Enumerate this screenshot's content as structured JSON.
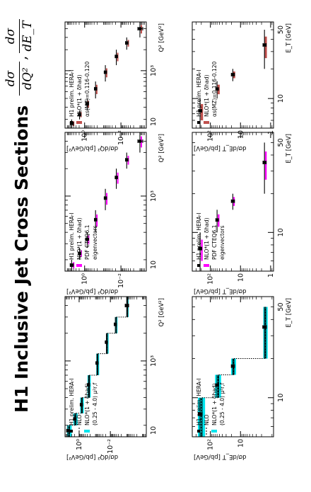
{
  "page": {
    "title": "H1 Inclusive Jet Cross Sections",
    "title_fraction_q2": {
      "numerator": "dσ",
      "denominator": "dQ²"
    },
    "title_separator": ",",
    "title_fraction_et": {
      "numerator": "dσ",
      "denominator": "dE_T"
    }
  },
  "chart_data": [
    {
      "type": "scatter",
      "panel": "q2-total-uncertainty",
      "xlabel": "Q² [GeV²]",
      "ylabel": "dσ/dQ² [pb/GeV²]",
      "xscale": "log",
      "yscale": "log",
      "xlim": [
        150,
        5000
      ],
      "ylim": [
        5e-05,
        8
      ],
      "x_ticks": [
        {
          "v": 1000,
          "label": "10³"
        }
      ],
      "x_tick_labels": [
        "10"
      ],
      "y_ticks": [
        {
          "v": 1,
          "label": "10⁰"
        },
        {
          "v": 0.01,
          "label": "10⁻²"
        }
      ],
      "x_minor_ticks": [
        200,
        300,
        400,
        500,
        600,
        700,
        800,
        900,
        2000,
        3000,
        4000,
        5000
      ],
      "bin_edges": [
        150,
        200,
        270,
        400,
        700,
        1200,
        2000,
        3000,
        5000
      ],
      "legend": [
        "H1 prelim. HERA-I",
        "NLO",
        "NLO*(1 + δhad)",
        "(0.25 - 4.0) μ²r,f"
      ],
      "series": [
        {
          "name": "H1 prelim. HERA-I",
          "x": [
            175,
            235,
            335,
            550,
            950,
            1600,
            2500,
            4000
          ],
          "y": [
            5.2,
            1.9,
            0.72,
            0.25,
            0.072,
            0.018,
            0.0048,
            0.0009
          ],
          "xerr": [
            25,
            35,
            65,
            150,
            250,
            400,
            500,
            1000
          ],
          "yerr_rel": [
            0.22,
            0.18,
            0.15,
            0.14,
            0.13,
            0.14,
            0.16,
            0.25
          ]
        },
        {
          "name": "NLO",
          "y": [
            4.4,
            1.7,
            0.66,
            0.23,
            0.065,
            0.016,
            0.0042,
            0.0008
          ]
        },
        {
          "name": "NLO*(1 + δhad)",
          "y": [
            4.1,
            1.6,
            0.63,
            0.22,
            0.063,
            0.0155,
            0.0041,
            0.00078
          ]
        },
        {
          "name": "(0.25 - 4.0) μ²r,f",
          "band_lo": [
            3.0,
            1.25,
            0.5,
            0.18,
            0.052,
            0.013,
            0.0035,
            0.00068
          ],
          "band_hi": [
            6.0,
            2.3,
            0.85,
            0.29,
            0.08,
            0.019,
            0.005,
            0.00092
          ]
        }
      ]
    },
    {
      "type": "scatter",
      "panel": "q2-pdf-uncertainty",
      "xlabel": "Q² [GeV²]",
      "ylabel": "dσ/dQ² [pb/GeV²]",
      "xscale": "log",
      "yscale": "log",
      "xlim": [
        150,
        5000
      ],
      "ylim": [
        0.0004,
        12
      ],
      "x_ticks": [
        {
          "v": 1000,
          "label": "10³"
        }
      ],
      "x_tick_labels": [
        "10"
      ],
      "y_ticks": [
        {
          "v": 1,
          "label": "10⁰"
        },
        {
          "v": 0.01,
          "label": "10⁻²"
        }
      ],
      "x_minor_ticks": [
        200,
        300,
        400,
        500,
        600,
        700,
        800,
        900,
        2000,
        3000,
        4000,
        5000
      ],
      "legend": [
        "H1 prelim. HERA-I",
        "NLO*(1 + δhad)",
        "PDF CTEQ6.1",
        "eigenvectors"
      ],
      "series": [
        {
          "name": "H1 prelim. HERA-I",
          "x": [
            175,
            235,
            335,
            550,
            950,
            1600,
            2500,
            4000
          ],
          "y": [
            5.2,
            1.9,
            0.72,
            0.25,
            0.072,
            0.018,
            0.0048,
            0.0009
          ],
          "xerr": [
            25,
            35,
            65,
            150,
            250,
            400,
            500,
            1000
          ],
          "yerr_rel": [
            0.2,
            0.16,
            0.14,
            0.13,
            0.13,
            0.14,
            0.16,
            0.3
          ]
        },
        {
          "name": "NLO*(1 + δhad) PDF band",
          "band_lo": [
            3.8,
            1.5,
            0.6,
            0.21,
            0.06,
            0.0148,
            0.0039,
            0.00074
          ],
          "band_hi": [
            4.4,
            1.7,
            0.66,
            0.23,
            0.066,
            0.0163,
            0.0043,
            0.00082
          ]
        }
      ]
    },
    {
      "type": "scatter",
      "panel": "q2-alphas",
      "xlabel": "Q² [GeV²]",
      "ylabel": "dσ/dQ² [pb/GeV²]",
      "xscale": "log",
      "yscale": "log",
      "xlim": [
        150,
        5000
      ],
      "ylim": [
        0.0004,
        12
      ],
      "x_ticks": [
        {
          "v": 1000,
          "label": "10³"
        }
      ],
      "x_tick_labels": [
        "10"
      ],
      "y_ticks": [
        {
          "v": 1,
          "label": "10⁰"
        },
        {
          "v": 0.01,
          "label": "10⁻²"
        }
      ],
      "x_minor_ticks": [
        200,
        300,
        400,
        500,
        600,
        700,
        800,
        900,
        2000,
        3000,
        4000,
        5000
      ],
      "legend": [
        "H1 prelim. HERA-I",
        "NLO*(1 + δhad)",
        "αs(MZ)=0.116-0.120"
      ],
      "series": [
        {
          "name": "H1 prelim. HERA-I",
          "x": [
            175,
            235,
            335,
            550,
            950,
            1600,
            2500,
            4000
          ],
          "y": [
            5.2,
            1.9,
            0.72,
            0.25,
            0.072,
            0.018,
            0.0048,
            0.0009
          ],
          "xerr": [
            25,
            35,
            65,
            150,
            250,
            400,
            500,
            1000
          ],
          "yerr_rel": [
            0.2,
            0.16,
            0.14,
            0.13,
            0.13,
            0.14,
            0.16,
            0.3
          ]
        },
        {
          "name": "αs(MZ)=0.116-0.120 band",
          "band_lo": [
            3.7,
            1.45,
            0.58,
            0.205,
            0.059,
            0.0146,
            0.0039,
            0.00074
          ],
          "band_hi": [
            4.5,
            1.75,
            0.68,
            0.235,
            0.067,
            0.0165,
            0.0043,
            0.00082
          ]
        }
      ]
    },
    {
      "type": "scatter",
      "panel": "et-total-uncertainty",
      "xlabel": "E_T [GeV]",
      "ylabel": "dσ/dE_T [pb/GeV]",
      "xscale": "log",
      "yscale": "log",
      "xlim": [
        5,
        60
      ],
      "ylim": [
        0.8,
        400
      ],
      "x_ticks": [
        {
          "v": 10,
          "label": "10"
        }
      ],
      "x_tick_labels": [
        "50"
      ],
      "y_ticks": [
        {
          "v": 100,
          "label": "10²"
        },
        {
          "v": 10,
          "label": "10"
        }
      ],
      "x_minor_ticks": [
        5,
        6,
        7,
        8,
        9,
        20,
        30,
        40,
        50,
        60
      ],
      "bin_edges": [
        5,
        10,
        15,
        20,
        50
      ],
      "legend": [
        "H1 prelim. HERA-I",
        "NLO",
        "NLO*(1 + δhad)",
        "(0.25 - 4.0) μ²r,f"
      ],
      "series": [
        {
          "name": "H1 prelim. HERA-I",
          "x": [
            7.5,
            12.5,
            17.5,
            35
          ],
          "y": [
            220,
            60,
            18,
            1.6
          ],
          "xerr": [
            2.5,
            2.5,
            2.5,
            15
          ],
          "yerr_rel": [
            0.15,
            0.12,
            0.12,
            0.14
          ]
        },
        {
          "name": "NLO",
          "y": [
            200,
            56,
            17,
            1.5
          ]
        },
        {
          "name": "NLO*(1 + δhad)",
          "y": [
            190,
            53,
            16.5,
            1.45
          ]
        },
        {
          "name": "(0.25 - 4.0) μ²r,f",
          "band_lo": [
            150,
            44,
            14,
            1.25
          ],
          "band_hi": [
            260,
            70,
            20.5,
            1.75
          ]
        }
      ]
    },
    {
      "type": "scatter",
      "panel": "et-pdf-uncertainty",
      "xlabel": "E_T [GeV]",
      "ylabel": "dσ/dE_T [pb/GeV]",
      "xscale": "log",
      "yscale": "log",
      "xlim": [
        5,
        60
      ],
      "ylim": [
        0.8,
        400
      ],
      "x_ticks": [
        {
          "v": 10,
          "label": "10"
        }
      ],
      "x_tick_labels": [
        "50"
      ],
      "y_ticks": [
        {
          "v": 100,
          "label": "10²"
        },
        {
          "v": 10,
          "label": "10"
        },
        {
          "v": 1,
          "label": "1"
        }
      ],
      "x_minor_ticks": [
        5,
        6,
        7,
        8,
        9,
        20,
        30,
        40,
        50,
        60
      ],
      "legend": [
        "H1 prelim. HERA-I",
        "NLO*(1 + δhad)",
        "PDF CTEQ6.1",
        "eigenvectors"
      ],
      "series": [
        {
          "name": "H1 prelim. HERA-I",
          "x": [
            7.5,
            12.5,
            17.5,
            35
          ],
          "y": [
            220,
            60,
            18,
            1.6
          ],
          "xerr": [
            2.5,
            2.5,
            2.5,
            15
          ],
          "yerr_rel": [
            0.12,
            0.1,
            0.12,
            0.12
          ]
        },
        {
          "name": "NLO*(1 + δhad) PDF band",
          "band_lo": [
            180,
            50,
            15.5,
            1.35
          ],
          "band_hi": [
            205,
            57,
            17.5,
            1.55
          ]
        }
      ]
    },
    {
      "type": "scatter",
      "panel": "et-alphas",
      "xlabel": "E_T [GeV]",
      "ylabel": "dσ/dE_T [pb/GeV]",
      "xscale": "log",
      "yscale": "log",
      "xlim": [
        5,
        60
      ],
      "ylim": [
        0.8,
        400
      ],
      "x_ticks": [
        {
          "v": 10,
          "label": "10"
        }
      ],
      "x_tick_labels": [
        "50"
      ],
      "y_ticks": [
        {
          "v": 100,
          "label": "10²"
        },
        {
          "v": 10,
          "label": "10"
        },
        {
          "v": 1,
          "label": "1"
        }
      ],
      "x_minor_ticks": [
        5,
        6,
        7,
        8,
        9,
        20,
        30,
        40,
        50,
        60
      ],
      "legend": [
        "H1 prelim. HERA-I",
        "NLO*(1 + δhad)",
        "αs(MZ)=0.116-0.120"
      ],
      "series": [
        {
          "name": "H1 prelim. HERA-I",
          "x": [
            7.5,
            12.5,
            17.5,
            35
          ],
          "y": [
            220,
            60,
            18,
            1.6
          ],
          "xerr": [
            2.5,
            2.5,
            2.5,
            15
          ],
          "yerr_rel": [
            0.12,
            0.1,
            0.12,
            0.12
          ]
        },
        {
          "name": "αs(MZ)=0.116-0.120 band",
          "band_lo": [
            175,
            49,
            15,
            1.33
          ],
          "band_hi": [
            210,
            58,
            18,
            1.57
          ]
        }
      ]
    }
  ],
  "colors": {
    "total_band": "#00e5ee",
    "pdf_band": "#ff00ff",
    "alphas_band": "#c0504d",
    "data_marker": "#000000"
  }
}
